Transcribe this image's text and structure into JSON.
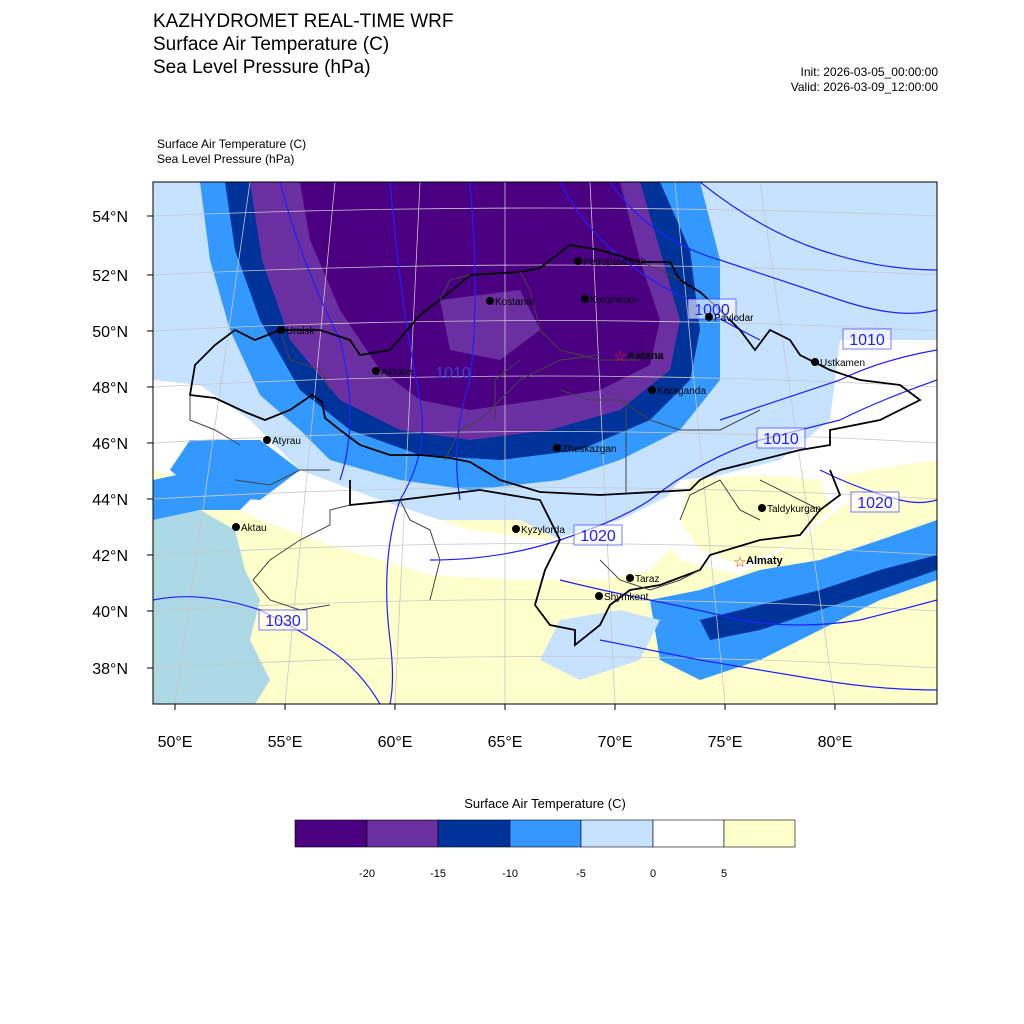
{
  "header": {
    "title_lines": [
      "KAZHYDROMET REAL-TIME WRF",
      "Surface Air Temperature  (C)",
      "Sea Level Pressure  (hPa)"
    ],
    "init": "Init: 2026-03-05_00:00:00",
    "valid": "Valid: 2026-03-09_12:00:00"
  },
  "subheader": {
    "line1": "Surface Air Temperature   (C)",
    "line2": "Sea Level Pressure   (hPa)"
  },
  "lat_labels": [
    "54°N",
    "52°N",
    "50°N",
    "48°N",
    "46°N",
    "44°N",
    "42°N",
    "40°N",
    "38°N"
  ],
  "lon_labels": [
    "50°E",
    "55°E",
    "60°E",
    "65°E",
    "70°E",
    "75°E",
    "80°E"
  ],
  "cities": [
    {
      "name": "Petropavlovsk",
      "capital": false
    },
    {
      "name": "Kokshetau",
      "capital": false
    },
    {
      "name": "Kostanai",
      "capital": false
    },
    {
      "name": "Pavlodar",
      "capital": false
    },
    {
      "name": "Astana",
      "capital": true
    },
    {
      "name": "Uralsk",
      "capital": false
    },
    {
      "name": "Aktobe",
      "capital": false
    },
    {
      "name": "Karaganda",
      "capital": false
    },
    {
      "name": "Ustkamen",
      "capital": false
    },
    {
      "name": "Atyrau",
      "capital": false
    },
    {
      "name": "Zheskazgan",
      "capital": false
    },
    {
      "name": "Aktau",
      "capital": false
    },
    {
      "name": "Kyzylorda",
      "capital": false
    },
    {
      "name": "Taldykurgan",
      "capital": false
    },
    {
      "name": "Almaty",
      "capital": true
    },
    {
      "name": "Taraz",
      "capital": false
    },
    {
      "name": "Shymkent",
      "capital": false
    }
  ],
  "isobar_labels": [
    "1000",
    "1010",
    "1010",
    "1020",
    "1020",
    "1030",
    "1010"
  ],
  "legend": {
    "title": "Surface Air Temperature (C)",
    "colors": [
      "#4b0082",
      "#6a2fa0",
      "#003399",
      "#3399ff",
      "#c6e2ff",
      "#ffffff",
      "#ffffcc"
    ],
    "ticks": [
      "-20",
      "-15",
      "-10",
      "-5",
      "0",
      "5"
    ]
  },
  "colors": {
    "isobar": "#2020ff",
    "border_main": "#000000",
    "border_regional": "#444444",
    "sea": "#add8e6"
  }
}
